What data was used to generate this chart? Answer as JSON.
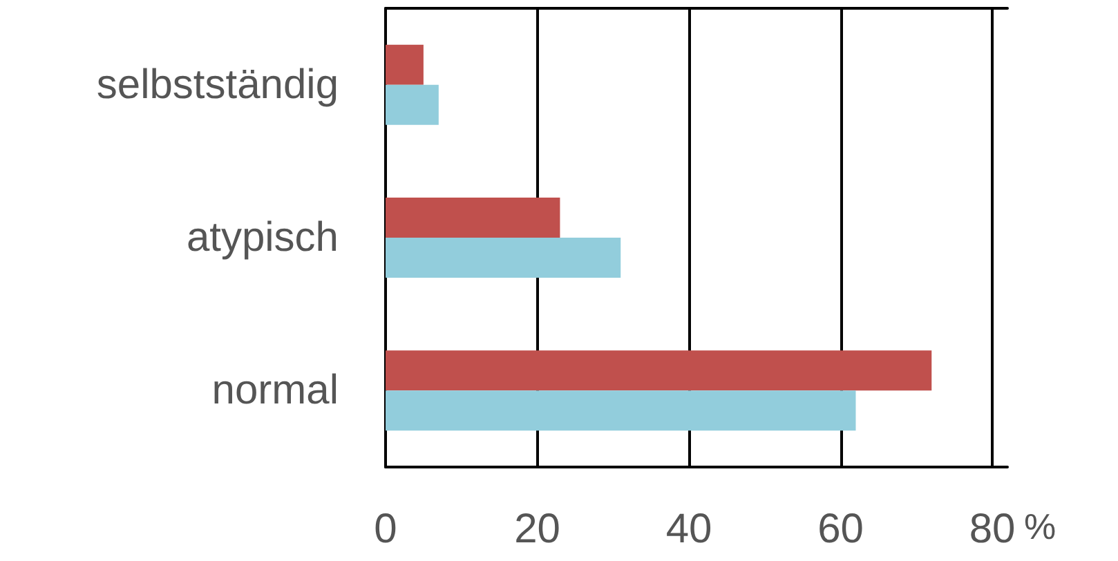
{
  "chart_data": {
    "type": "bar",
    "orientation": "horizontal",
    "xlabel": "%",
    "categories": [
      "selbstständig",
      "atypisch",
      "normal"
    ],
    "series": [
      {
        "color": "#c0504d",
        "values": [
          5,
          23,
          72
        ]
      },
      {
        "color": "#92cddc",
        "values": [
          7,
          31,
          62
        ]
      }
    ],
    "xlim": [
      0,
      82
    ],
    "xticks": [
      0,
      20,
      40,
      60,
      80
    ],
    "grid": "x"
  }
}
